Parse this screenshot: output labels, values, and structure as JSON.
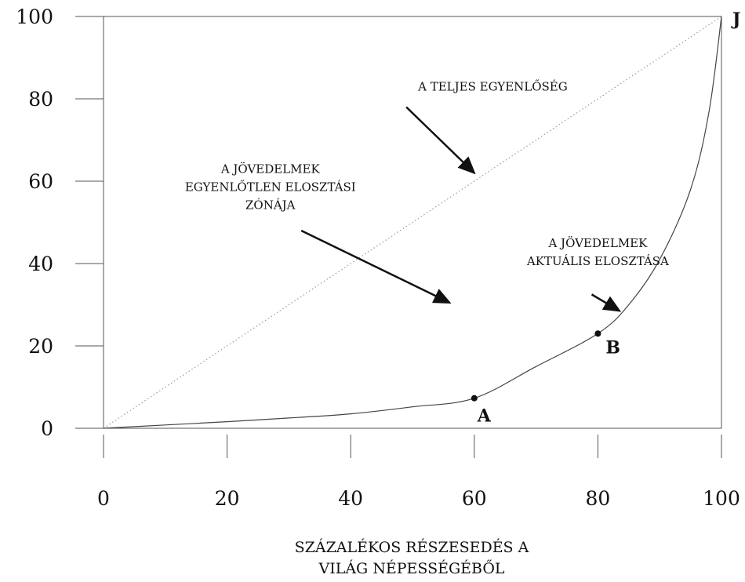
{
  "chart_data": {
    "type": "line",
    "xlabel_lines": [
      "SZÁZALÉKOS RÉSZESEDÉS A",
      "VILÁG NÉPESSÉGÉBŐL"
    ],
    "ylabel": "",
    "xlim": [
      0,
      100
    ],
    "ylim": [
      0,
      100
    ],
    "x_ticks": [
      0,
      20,
      40,
      60,
      80,
      100
    ],
    "y_ticks": [
      0,
      20,
      40,
      60,
      80,
      100
    ],
    "grid": false,
    "series": [
      {
        "style": "dotted",
        "color": "#9a9a9a",
        "points": [
          [
            0,
            0
          ],
          [
            100,
            100
          ]
        ]
      },
      {
        "style": "solid",
        "color": "#444444",
        "points": [
          [
            0,
            0
          ],
          [
            10,
            0.8
          ],
          [
            20,
            1.6
          ],
          [
            30,
            2.5
          ],
          [
            40,
            3.5
          ],
          [
            50,
            5.2
          ],
          [
            60,
            7.3
          ],
          [
            70,
            15
          ],
          [
            80,
            23
          ],
          [
            85,
            30
          ],
          [
            90,
            41
          ],
          [
            95,
            58
          ],
          [
            98,
            77
          ],
          [
            100,
            100
          ]
        ]
      }
    ],
    "points": [
      {
        "x": 60,
        "y": 7.3,
        "label": "A"
      },
      {
        "x": 80,
        "y": 23,
        "label": "B"
      },
      {
        "x": 100,
        "y": 100,
        "label": "J"
      }
    ],
    "annotations": [
      {
        "lines": [
          "A TELJES EGYENLŐSÉG"
        ],
        "text_at": [
          63,
          82
        ],
        "arrow_from": [
          49,
          78
        ],
        "arrow_to": [
          60,
          62
        ]
      },
      {
        "lines": [
          "A JÖVEDELMEK",
          "EGYENLŐTLEN ELOSZTÁSI",
          "ZÓNÁJA"
        ],
        "text_at": [
          27,
          62
        ],
        "arrow_from": [
          32,
          48
        ],
        "arrow_to": [
          56,
          30.5
        ]
      },
      {
        "lines": [
          "A JÖVEDELMEK",
          "AKTUÁLIS ELOSZTÁSA"
        ],
        "text_at": [
          80,
          44
        ],
        "arrow_from": [
          79,
          32.5
        ],
        "arrow_to": [
          83.5,
          28.5
        ]
      }
    ]
  }
}
